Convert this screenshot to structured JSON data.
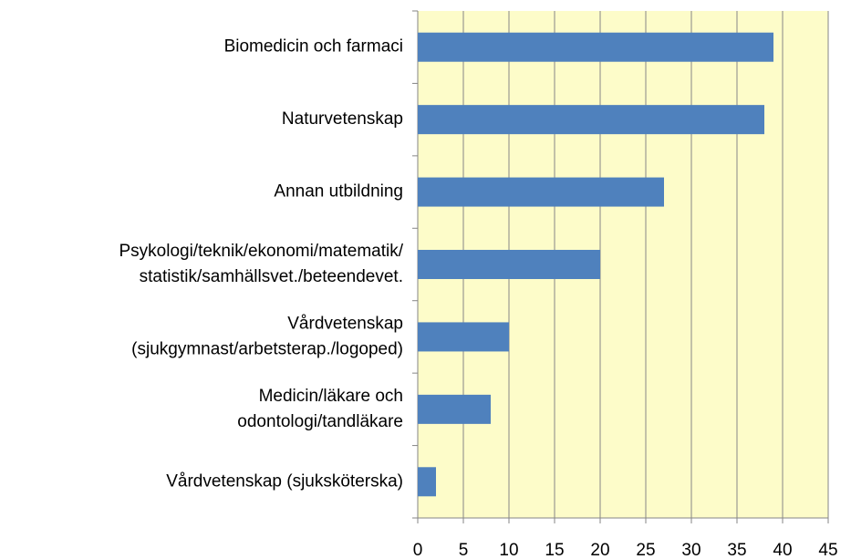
{
  "chart_data": {
    "type": "bar",
    "orientation": "horizontal",
    "categories": [
      [
        "Biomedicin och farmaci"
      ],
      [
        "Naturvetenskap"
      ],
      [
        "Annan utbildning"
      ],
      [
        "Psykologi/teknik/ekonomi/matematik/",
        "statistik/samhällsvet./beteendevet."
      ],
      [
        "Vårdvetenskap",
        "(sjukgymnast/arbetsterap./logoped)"
      ],
      [
        "Medicin/läkare och",
        "odontologi/tandläkare"
      ],
      [
        "Vårdvetenskap (sjuksköterska)"
      ]
    ],
    "values": [
      39,
      38,
      27,
      20,
      10,
      8,
      2
    ],
    "color": "#4f81bd",
    "plot_background": "#fdfcc9",
    "xlim": [
      0,
      45
    ],
    "xticks": [
      0,
      5,
      10,
      15,
      20,
      25,
      30,
      35,
      40,
      45
    ],
    "grid": true
  }
}
